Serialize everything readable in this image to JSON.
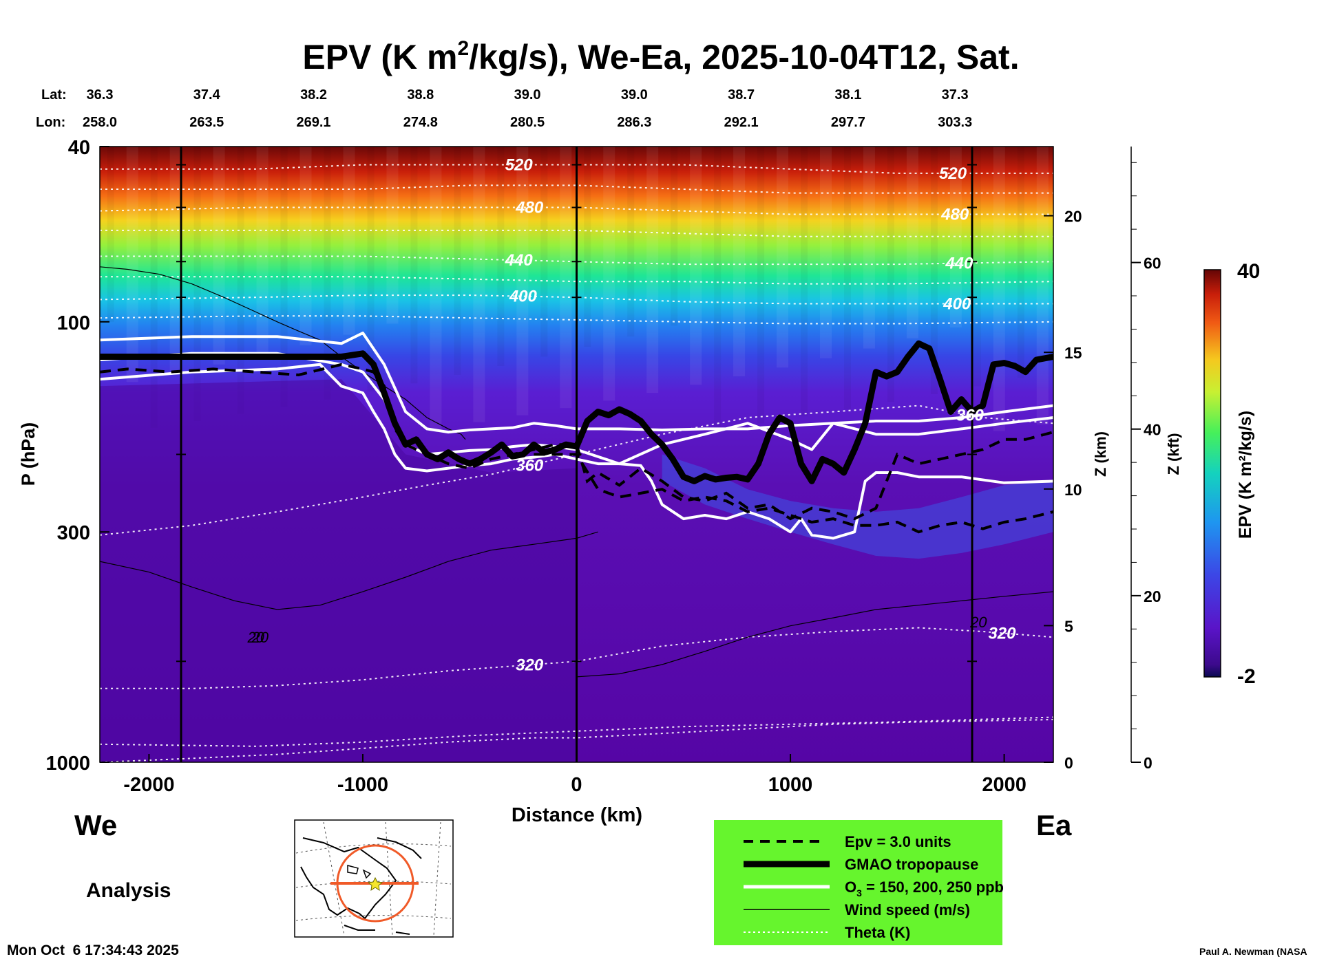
{
  "chart_data": {
    "type": "heatmap",
    "title_main": "EPV (K m",
    "title_sup": "2",
    "title_rest": "/kg/s), We-Ea, 2025-10-04T12, Sat.",
    "xlabel": "Distance (km)",
    "ylabel": "P (hPa)",
    "y2label": "Z (km)",
    "y3label": "Z (kft)",
    "colorbar_label": "EPV (K m²/kg/s)",
    "xlim": [
      -2230,
      2230
    ],
    "x_ticks": [
      -2000,
      -1000,
      0,
      1000,
      2000
    ],
    "x_tick_labels": [
      "-2000",
      "-1000",
      "0",
      "1000",
      "2000"
    ],
    "ylim": [
      1000,
      40
    ],
    "y_log": true,
    "y_ticks": [
      40,
      100,
      300,
      1000
    ],
    "y_tick_labels": [
      "40",
      "100",
      "300",
      "1000"
    ],
    "z_km_ticks": [
      0,
      5,
      10,
      15,
      20
    ],
    "z_km_tick_labels": [
      "0",
      "5",
      "10",
      "15",
      "20"
    ],
    "z_kft_ticks": [
      0,
      20,
      40,
      60
    ],
    "z_kft_tick_labels": [
      "0",
      "20",
      "40",
      "60"
    ],
    "colorbar_range": [
      -2,
      40
    ],
    "colorbar_labels": [
      "40",
      "-2"
    ],
    "lat_label": "Lat:",
    "lon_label": "Lon:",
    "lat_values": [
      "36.3",
      "37.4",
      "38.2",
      "38.8",
      "39.0",
      "39.0",
      "38.7",
      "38.1",
      "37.3"
    ],
    "lon_values": [
      "258.0",
      "263.5",
      "269.1",
      "274.8",
      "280.5",
      "286.3",
      "292.1",
      "297.7",
      "303.3"
    ],
    "lat_lon_x": [
      -2230,
      -1730,
      -1230,
      -730,
      -230,
      270,
      770,
      1270,
      1770
    ],
    "vertical_markers_km": [
      -1850,
      0,
      1850
    ],
    "theta_isentropes": [
      {
        "theta": 320,
        "label": "320",
        "x": [
          -2230,
          -1800,
          -1400,
          -1000,
          -600,
          -200,
          0,
          400,
          800,
          1200,
          1600,
          1900,
          2230
        ],
        "p": [
          680,
          680,
          670,
          650,
          620,
          600,
          590,
          545,
          520,
          505,
          495,
          505,
          520
        ]
      },
      {
        "theta": 360,
        "label": "360",
        "x": [
          -2230,
          -1800,
          -1400,
          -1000,
          -700,
          -400,
          0,
          400,
          800,
          1200,
          1600,
          1900,
          2230
        ],
        "p": [
          305,
          290,
          270,
          250,
          235,
          222,
          200,
          180,
          165,
          160,
          155,
          165,
          170
        ]
      },
      {
        "theta": 400,
        "label": "400",
        "x": [
          -2230,
          -1500,
          -1000,
          -500,
          0,
          500,
          1000,
          1500,
          2230
        ],
        "p": [
          89,
          88,
          87,
          87,
          88,
          90,
          91,
          91,
          91
        ]
      },
      {
        "theta": 440,
        "label": "440",
        "x": [
          -2230,
          -1500,
          -1000,
          -500,
          0,
          500,
          1000,
          1500,
          2230
        ],
        "p": [
          71,
          71,
          71,
          72,
          73,
          74,
          74,
          74,
          73
        ]
      },
      {
        "theta": 480,
        "label": "480",
        "x": [
          -2230,
          -1500,
          -1000,
          -500,
          0,
          500,
          1000,
          1500,
          2230
        ],
        "p": [
          56,
          55,
          55,
          55,
          55,
          56,
          57,
          57,
          57
        ]
      },
      {
        "theta": 520,
        "label": "520",
        "x": [
          -2230,
          -1500,
          -1000,
          -500,
          0,
          500,
          1000,
          1500,
          2230
        ],
        "p": [
          45,
          45,
          44,
          44,
          44,
          44,
          45,
          46,
          46
        ]
      }
    ],
    "theta_extra": [
      {
        "x": [
          -2230,
          -1500,
          -1000,
          -500,
          0,
          500,
          1000,
          1500,
          2230
        ],
        "p": [
          910,
          920,
          900,
          870,
          850,
          830,
          820,
          810,
          790
        ]
      },
      {
        "x": [
          -2230,
          -1800,
          -1400,
          -1000,
          -600,
          -200,
          0,
          400,
          800,
          1200,
          1600,
          2230
        ],
        "p": [
          1000,
          980,
          960,
          930,
          900,
          880,
          880,
          860,
          840,
          820,
          810,
          800
        ]
      },
      {
        "x": [
          -2230,
          -1500,
          -1000,
          -500,
          0,
          500,
          1000,
          1500,
          2230
        ],
        "p": [
          98,
          97,
          97,
          98,
          99,
          100,
          101,
          101,
          100
        ]
      },
      {
        "x": [
          -2230,
          -1500,
          -1000,
          -500,
          0,
          500,
          1000,
          1500,
          2230
        ],
        "p": [
          79,
          79,
          79,
          80,
          81,
          81,
          82,
          82,
          81
        ]
      },
      {
        "x": [
          -2230,
          -1500,
          -1000,
          -500,
          0,
          500,
          1000,
          1500,
          2230
        ],
        "p": [
          62,
          62,
          62,
          62,
          62,
          63,
          64,
          64,
          64
        ]
      },
      {
        "x": [
          -2230,
          -1500,
          -1000,
          -500,
          0,
          500,
          1000,
          1500,
          2230
        ],
        "p": [
          50,
          50,
          50,
          49,
          49,
          50,
          51,
          51,
          51
        ]
      }
    ],
    "tropopause": {
      "x": [
        -2230,
        -1100,
        -1000,
        -950,
        -900,
        -850,
        -800,
        -750,
        -700,
        -650,
        -600,
        -550,
        -500,
        -450,
        -400,
        -350,
        -300,
        -250,
        -200,
        -150,
        -100,
        -50,
        0,
        50,
        100,
        150,
        200,
        250,
        300,
        350,
        400,
        450,
        500,
        550,
        600,
        650,
        700,
        750,
        800,
        850,
        900,
        950,
        1000,
        1050,
        1100,
        1150,
        1200,
        1250,
        1300,
        1350,
        1400,
        1450,
        1500,
        1550,
        1600,
        1650,
        1700,
        1750,
        1800,
        1850,
        1900,
        1950,
        2000,
        2050,
        2100,
        2150,
        2230
      ],
      "p": [
        120,
        120,
        118,
        125,
        145,
        170,
        190,
        185,
        200,
        205,
        198,
        205,
        210,
        205,
        198,
        190,
        202,
        200,
        190,
        198,
        195,
        190,
        192,
        168,
        160,
        163,
        158,
        162,
        168,
        180,
        190,
        205,
        225,
        230,
        224,
        228,
        226,
        225,
        228,
        210,
        180,
        165,
        170,
        210,
        230,
        205,
        210,
        220,
        195,
        170,
        130,
        133,
        130,
        120,
        112,
        115,
        135,
        160,
        150,
        160,
        155,
        125,
        124,
        126,
        130,
        122,
        120
      ]
    },
    "epv3": {
      "x": [
        -2230,
        -2100,
        -1900,
        -1700,
        -1500,
        -1300,
        -1100,
        -1000,
        -950,
        -900,
        -850,
        -800,
        -700,
        -600,
        -500,
        -400,
        -300,
        -200,
        -100,
        0,
        50,
        100,
        200,
        300,
        400,
        500,
        600,
        700,
        800,
        900,
        1000,
        1100,
        1200,
        1300,
        1400,
        1500,
        1600,
        1700,
        1800,
        1900,
        2000,
        2100,
        2230
      ],
      "p": [
        130,
        128,
        130,
        128,
        130,
        132,
        125,
        128,
        130,
        140,
        175,
        190,
        200,
        210,
        215,
        205,
        200,
        195,
        190,
        190,
        230,
        220,
        235,
        215,
        230,
        250,
        255,
        245,
        265,
        260,
        280,
        265,
        270,
        280,
        265,
        200,
        210,
        205,
        200,
        195,
        185,
        185,
        178
      ]
    },
    "epv3_lower": {
      "x": [
        -200,
        0,
        100,
        200,
        300,
        400,
        500,
        600,
        700,
        800,
        900,
        1000,
        1100,
        1200,
        1300,
        1400,
        1500,
        1600,
        1700,
        1800,
        1900,
        2000,
        2100,
        2230
      ],
      "p": [
        200,
        200,
        240,
        250,
        245,
        240,
        255,
        250,
        255,
        270,
        265,
        275,
        285,
        280,
        290,
        290,
        285,
        300,
        290,
        285,
        295,
        285,
        280,
        270
      ]
    },
    "ozone_contours": [
      {
        "ppb": 150,
        "x": [
          -2230,
          -1800,
          -1400,
          -1100,
          -1000,
          -900,
          -800,
          -700,
          -600,
          -500,
          -400,
          -300,
          -200,
          -100,
          0,
          200,
          400,
          600,
          800,
          1000,
          1200,
          1400,
          1600,
          1800,
          2000,
          2230
        ],
        "p": [
          110,
          108,
          108,
          112,
          106,
          125,
          160,
          175,
          178,
          176,
          175,
          174,
          170,
          172,
          175,
          175,
          176,
          175,
          175,
          172,
          170,
          168,
          168,
          165,
          160,
          155
        ]
      },
      {
        "ppb": 200,
        "x": [
          -2230,
          -1800,
          -1400,
          -1100,
          -1000,
          -900,
          -800,
          -700,
          -600,
          -500,
          -400,
          -300,
          -200,
          -100,
          0,
          200,
          400,
          600,
          800,
          1000,
          1100,
          1200,
          1400,
          1600,
          1800,
          2000,
          2230
        ],
        "p": [
          122,
          118,
          118,
          125,
          130,
          150,
          190,
          200,
          198,
          196,
          195,
          192,
          190,
          192,
          195,
          210,
          190,
          180,
          170,
          185,
          195,
          170,
          180,
          180,
          175,
          170,
          165
        ]
      },
      {
        "ppb": 250,
        "x": [
          -2230,
          -1800,
          -1400,
          -1200,
          -1100,
          -1000,
          -950,
          -900,
          -850,
          -800,
          -700,
          -600,
          -500,
          -400,
          -300,
          -200,
          -100,
          0,
          100,
          200,
          300,
          350,
          400,
          500,
          600,
          700,
          800,
          900,
          1000,
          1050,
          1100,
          1200,
          1300,
          1350,
          1400,
          1500,
          1600,
          1800,
          2000,
          2230
        ],
        "p": [
          135,
          130,
          128,
          125,
          140,
          145,
          160,
          175,
          200,
          215,
          218,
          215,
          212,
          210,
          205,
          203,
          200,
          205,
          210,
          210,
          212,
          230,
          260,
          280,
          275,
          280,
          270,
          280,
          300,
          280,
          305,
          310,
          300,
          230,
          220,
          220,
          225,
          225,
          232,
          230
        ]
      }
    ],
    "wind_contours": [
      {
        "label": "20",
        "x": [
          -2230,
          -2100,
          -1950,
          -1800,
          -1650,
          -1500,
          -1400,
          -1300,
          -1200,
          -1100,
          -1000,
          -900,
          -800,
          -700,
          -600,
          -540,
          -520
        ],
        "p": [
          75,
          76,
          78,
          82,
          88,
          95,
          100,
          105,
          110,
          120,
          130,
          140,
          150,
          165,
          175,
          180,
          185
        ]
      },
      {
        "label": "20",
        "x": [
          -2230,
          -2000,
          -1800,
          -1600,
          -1400,
          -1200,
          -1000,
          -800,
          -600,
          -400,
          -200,
          0,
          100
        ],
        "p": [
          350,
          370,
          400,
          430,
          450,
          440,
          410,
          380,
          350,
          330,
          320,
          310,
          300
        ]
      },
      {
        "label": "20",
        "x": [
          0,
          200,
          400,
          600,
          800,
          1000,
          1200,
          1400,
          1600,
          1800,
          2000,
          2230
        ],
        "p": [
          640,
          630,
          600,
          560,
          520,
          490,
          470,
          450,
          440,
          430,
          420,
          410
        ]
      }
    ],
    "legend": [
      {
        "style": "dashed",
        "label": "Epv = 3.0 units"
      },
      {
        "style": "thick",
        "label": "GMAO tropopause"
      },
      {
        "style": "white",
        "label": "O3 = 150, 200, 250 ppb"
      },
      {
        "style": "thin",
        "label": "Wind speed (m/s)"
      },
      {
        "style": "dotted",
        "label": "Theta (K)"
      }
    ],
    "legend_o3_prefix": "O",
    "legend_o3_sub": "3",
    "legend_o3_rest": " = 150, 200, 250 ppb",
    "legend_bg": "#66f52d"
  },
  "labels": {
    "west": "We",
    "east": "Ea",
    "analysis": "Analysis",
    "timestamp": "Mon Oct  6 17:34:43 2025",
    "credit": "Paul A. Newman (NASA"
  },
  "map": {
    "track_color": "#f05a28",
    "marker_color": "#f5e62d"
  }
}
